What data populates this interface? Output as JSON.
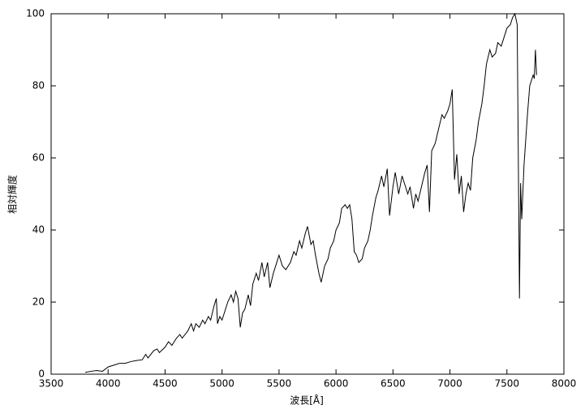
{
  "chart_data": {
    "type": "line",
    "xlabel": "波長[Å]",
    "ylabel": "相対輝度",
    "x": [
      3800,
      3850,
      3900,
      3950,
      3980,
      4000,
      4050,
      4100,
      4150,
      4200,
      4250,
      4300,
      4330,
      4350,
      4400,
      4430,
      4450,
      4500,
      4530,
      4560,
      4600,
      4630,
      4650,
      4700,
      4730,
      4750,
      4770,
      4800,
      4830,
      4850,
      4880,
      4900,
      4930,
      4950,
      4960,
      4980,
      5000,
      5030,
      5050,
      5080,
      5100,
      5120,
      5140,
      5160,
      5180,
      5200,
      5230,
      5250,
      5270,
      5300,
      5320,
      5350,
      5370,
      5400,
      5420,
      5450,
      5480,
      5500,
      5530,
      5560,
      5600,
      5630,
      5650,
      5680,
      5700,
      5730,
      5750,
      5780,
      5800,
      5820,
      5850,
      5870,
      5900,
      5930,
      5950,
      5980,
      6000,
      6030,
      6050,
      6080,
      6100,
      6120,
      6140,
      6160,
      6180,
      6200,
      6230,
      6250,
      6280,
      6300,
      6320,
      6350,
      6370,
      6400,
      6420,
      6450,
      6470,
      6500,
      6520,
      6550,
      6580,
      6600,
      6630,
      6650,
      6680,
      6700,
      6720,
      6750,
      6780,
      6800,
      6820,
      6840,
      6870,
      6900,
      6930,
      6950,
      6980,
      7000,
      7020,
      7040,
      7060,
      7080,
      7100,
      7120,
      7140,
      7160,
      7180,
      7200,
      7230,
      7250,
      7280,
      7300,
      7320,
      7350,
      7370,
      7400,
      7420,
      7450,
      7480,
      7500,
      7530,
      7550,
      7570,
      7590,
      7600,
      7610,
      7620,
      7630,
      7650,
      7680,
      7700,
      7720,
      7730,
      7740,
      7750,
      7760
    ],
    "values": [
      0.5,
      0.8,
      1,
      0.8,
      1.5,
      2,
      2.5,
      3,
      3,
      3.5,
      3.8,
      4,
      5.5,
      4.5,
      6.5,
      7,
      6,
      7.5,
      9,
      8,
      10,
      11,
      10,
      12,
      14,
      12,
      14,
      13,
      15,
      14,
      16,
      15,
      19,
      21,
      14,
      16,
      15,
      18,
      20,
      22,
      20,
      23,
      21,
      13,
      17,
      18,
      22,
      19,
      25,
      28,
      26,
      31,
      27,
      31,
      24,
      28,
      31,
      33,
      30,
      29,
      31,
      34,
      33,
      37,
      35,
      39,
      41,
      36,
      37,
      33,
      28,
      25.5,
      30,
      32,
      35,
      37,
      40,
      42,
      46,
      47,
      46,
      47,
      43,
      34,
      33,
      31,
      32,
      35,
      37,
      40,
      44,
      49,
      51,
      55,
      52,
      57,
      44,
      52,
      56,
      50,
      55,
      53,
      50,
      52,
      46,
      50,
      48,
      52,
      56,
      58,
      45,
      62,
      64,
      68,
      72,
      71,
      73,
      75,
      79,
      54,
      61,
      50,
      55,
      45,
      50,
      53,
      51,
      60,
      65,
      70,
      75,
      80,
      86,
      90,
      88,
      89,
      92,
      91,
      94,
      96,
      97,
      99,
      100,
      97,
      60,
      21,
      53,
      43,
      58,
      72,
      80,
      82,
      83,
      82,
      90,
      83
    ],
    "color": "#000000",
    "xlim": [
      3500,
      8000
    ],
    "xticks": [
      3500,
      4000,
      4500,
      5000,
      5500,
      6000,
      6500,
      7000,
      7500,
      8000
    ],
    "ylim": [
      0,
      100
    ],
    "yticks": [
      0,
      20,
      40,
      60,
      80,
      100
    ]
  }
}
